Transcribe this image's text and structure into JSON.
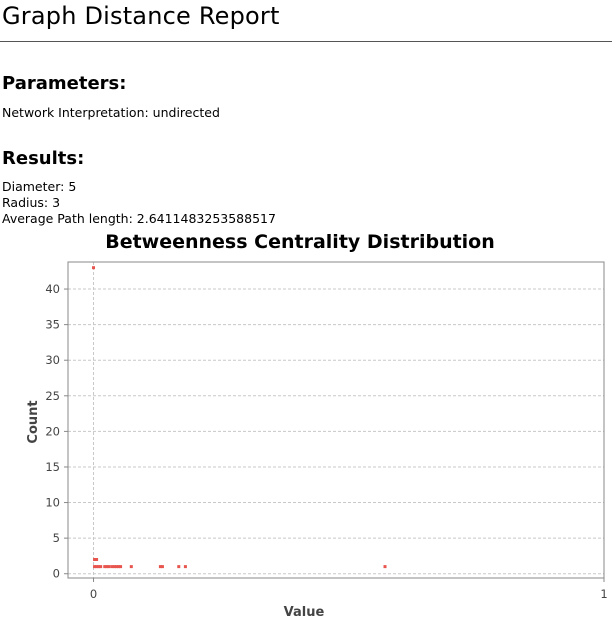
{
  "report": {
    "title": "Graph Distance Report"
  },
  "parameters": {
    "heading": "Parameters:",
    "network_interpretation": "Network Interpretation:  undirected"
  },
  "results": {
    "heading": "Results:",
    "diameter": "Diameter: 5",
    "radius": "Radius: 3",
    "average_path_length": "Average Path length: 2.6411483253588517"
  },
  "colors": {
    "point": "#e8554e",
    "grid": "#c8c8c8",
    "plot_border": "#888888",
    "axis_text": "#444444"
  },
  "chart_data": {
    "type": "scatter",
    "title": "Betweenness Centrality Distribution",
    "xlabel": "Value",
    "ylabel": "Count",
    "xlim": [
      -0.05,
      1.0
    ],
    "ylim": [
      -0.6,
      43.8
    ],
    "x_ticks": [
      0,
      1
    ],
    "x_tick_labels": [
      "0",
      "1"
    ],
    "y_ticks": [
      0,
      5,
      10,
      15,
      20,
      25,
      30,
      35,
      40
    ],
    "y_tick_labels": [
      "0",
      "5",
      "10",
      "15",
      "20",
      "25",
      "30",
      "35",
      "40"
    ],
    "grid": true,
    "legend": "none",
    "series": [
      {
        "points": [
          {
            "x": 0.0,
            "y": 43
          },
          {
            "x": 0.002,
            "y": 2
          },
          {
            "x": 0.006,
            "y": 2
          },
          {
            "x": 0.002,
            "y": 1
          },
          {
            "x": 0.006,
            "y": 1
          },
          {
            "x": 0.01,
            "y": 1
          },
          {
            "x": 0.014,
            "y": 1
          },
          {
            "x": 0.022,
            "y": 1
          },
          {
            "x": 0.026,
            "y": 1
          },
          {
            "x": 0.03,
            "y": 1
          },
          {
            "x": 0.036,
            "y": 1
          },
          {
            "x": 0.041,
            "y": 1
          },
          {
            "x": 0.045,
            "y": 1
          },
          {
            "x": 0.049,
            "y": 1
          },
          {
            "x": 0.053,
            "y": 1
          },
          {
            "x": 0.074,
            "y": 1
          },
          {
            "x": 0.131,
            "y": 1
          },
          {
            "x": 0.135,
            "y": 1
          },
          {
            "x": 0.167,
            "y": 1
          },
          {
            "x": 0.18,
            "y": 1
          },
          {
            "x": 0.571,
            "y": 1
          }
        ]
      }
    ]
  }
}
